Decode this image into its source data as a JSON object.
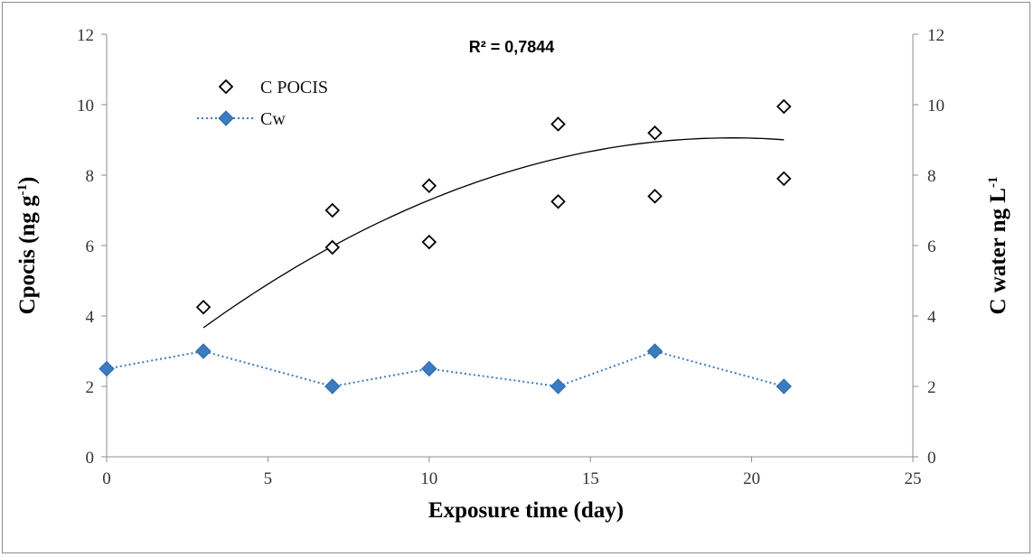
{
  "chart_data": {
    "type": "scatter",
    "xlabel": "Exposure time (day)",
    "ylabel_left": "Cpocis (ng g",
    "ylabel_left_sup": "-1",
    "ylabel_left_tail": ")",
    "ylabel_right": "C water ng L",
    "ylabel_right_sup": "-1",
    "xlim": [
      0,
      25
    ],
    "ylim_left": [
      0,
      12
    ],
    "ylim_right": [
      0,
      12
    ],
    "xticks": [
      0,
      5,
      10,
      15,
      20,
      25
    ],
    "yticks_left": [
      0,
      2,
      4,
      6,
      8,
      10,
      12
    ],
    "yticks_right": [
      0,
      2,
      4,
      6,
      8,
      10,
      12
    ],
    "grid": false,
    "legend_placement": "top-left",
    "annotation": "R² = 0,7844",
    "series": [
      {
        "name": "C POCIS",
        "marker": "open-diamond",
        "color": "#000000",
        "axis": "left",
        "points": [
          [
            3,
            4.25
          ],
          [
            7,
            5.95
          ],
          [
            7,
            7.0
          ],
          [
            10,
            6.1
          ],
          [
            10,
            7.7
          ],
          [
            14,
            7.25
          ],
          [
            14,
            9.45
          ],
          [
            17,
            7.4
          ],
          [
            17,
            9.2
          ],
          [
            21,
            7.9
          ],
          [
            21,
            9.95
          ]
        ]
      },
      {
        "name": "Cw",
        "marker": "filled-diamond",
        "color": "#3b7bbf",
        "line": "dotted",
        "axis": "right",
        "points": [
          [
            0,
            2.5
          ],
          [
            3,
            3.0
          ],
          [
            7,
            2.0
          ],
          [
            10,
            2.5
          ],
          [
            14,
            2.0
          ],
          [
            17,
            3.0
          ],
          [
            21,
            2.0
          ]
        ]
      }
    ],
    "trendline": {
      "type": "polynomial",
      "color": "#000000",
      "x_range": [
        3,
        21
      ],
      "coefficients": [
        1.51,
        0.779,
        -0.0201
      ]
    }
  }
}
